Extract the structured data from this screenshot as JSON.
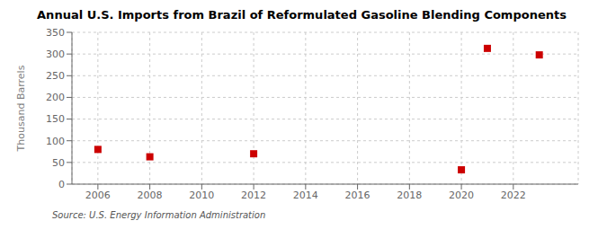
{
  "chart_data": {
    "type": "scatter",
    "title": "Annual U.S. Imports from Brazil of Reformulated Gasoline Blending Components",
    "y_label": "Thousand Barrels",
    "annotations": [
      "Source: U.S. Energy Information Administration"
    ],
    "x": [
      2006,
      2008,
      2012,
      2020,
      2021,
      2023
    ],
    "values": [
      80,
      63,
      70,
      33,
      313,
      298
    ],
    "color": "#cc0000",
    "marker": "square",
    "xlim": [
      2005.0,
      2024.5
    ],
    "xticks": [
      2006,
      2008,
      2010,
      2012,
      2014,
      2016,
      2018,
      2020,
      2022
    ],
    "ylim": [
      0,
      350
    ],
    "yticks": [
      0,
      50,
      100,
      150,
      200,
      250,
      300,
      350
    ],
    "grid": true
  }
}
